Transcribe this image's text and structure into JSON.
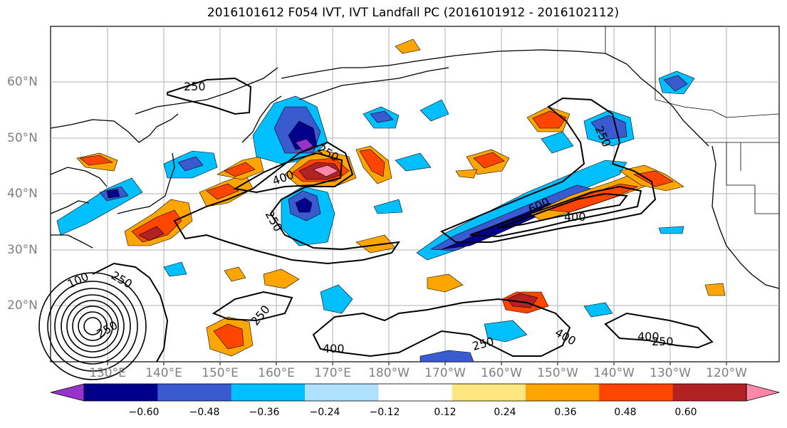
{
  "title": "2016101612 F054 IVT, IVT Landfall PC (2016101912 - 2016102112)",
  "lat_labels": [
    "60°N",
    "50°N",
    "40°N",
    "30°N",
    "20°N"
  ],
  "lon_labels": [
    "130°E",
    "140°E",
    "150°E",
    "160°E",
    "170°E",
    "180°W",
    "170°W",
    "160°W",
    "150°W",
    "140°W",
    "130°W",
    "120°W"
  ],
  "contour_labels": [
    "250",
    "250",
    "400",
    "250",
    "400",
    "250",
    "600",
    "400",
    "250",
    "250",
    "400",
    "250",
    "400",
    "250",
    "100",
    "250"
  ],
  "colorbar": {
    "colors": [
      "#9932cc",
      "#00008b",
      "#3a5bcf",
      "#00bfff",
      "#b0e0ff",
      "#ffffff",
      "#ffe680",
      "#ffa500",
      "#ff4500",
      "#b22222",
      "#ff88aa"
    ],
    "tick_labels": [
      "−0.60",
      "−0.48",
      "−0.36",
      "−0.24",
      "−0.12",
      "0.12",
      "0.24",
      "0.36",
      "0.48",
      "0.60"
    ]
  }
}
